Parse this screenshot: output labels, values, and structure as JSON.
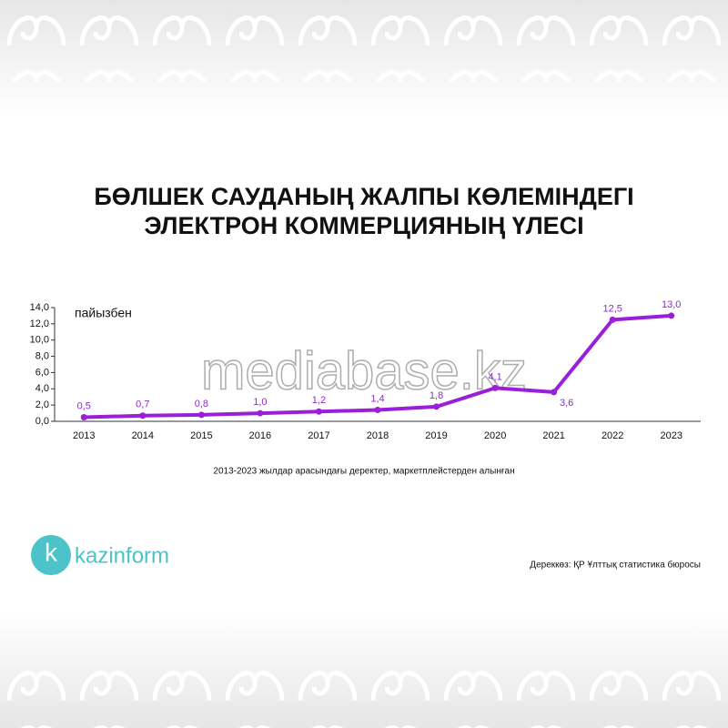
{
  "chart_data": {
    "type": "line",
    "title": [
      "БӨЛШЕК САУДАНЫҢ ЖАЛПЫ КӨЛЕМІНДЕГІ",
      "ЭЛЕКТРОН КОММЕРЦИЯНЫҢ ҮЛЕСІ"
    ],
    "unit_label": "пайызбен",
    "categories": [
      "2013",
      "2014",
      "2015",
      "2016",
      "2017",
      "2018",
      "2019",
      "2020",
      "2021",
      "2022",
      "2023"
    ],
    "values": [
      0.5,
      0.7,
      0.8,
      1.0,
      1.2,
      1.4,
      1.8,
      4.1,
      3.6,
      12.5,
      13.0
    ],
    "value_labels": [
      "0,5",
      "0,7",
      "0,8",
      "1,0",
      "1,2",
      "1,4",
      "1,8",
      "4,1",
      "3,6",
      "12,5",
      "13,0"
    ],
    "color": "#9a1fd8",
    "ylim": [
      0,
      14
    ],
    "yticks": [
      {
        "value": 0,
        "label": "0,0"
      },
      {
        "value": 2,
        "label": "2,0"
      },
      {
        "value": 4,
        "label": "4,0"
      },
      {
        "value": 6,
        "label": "6,0"
      },
      {
        "value": 8,
        "label": "8,0"
      },
      {
        "value": 10,
        "label": "10,0"
      },
      {
        "value": 12,
        "label": "12,0"
      },
      {
        "value": 14,
        "label": "14,0"
      }
    ],
    "grid": false,
    "note": "2013-2023 жылдар арасындағы деректер, маркетплейстерден алынған",
    "source": "Дереккөз: ҚР Ұлттық статистика бюросы"
  },
  "logo": {
    "letter": "k",
    "text": "kazinform"
  },
  "watermark": "mediabase.kz"
}
